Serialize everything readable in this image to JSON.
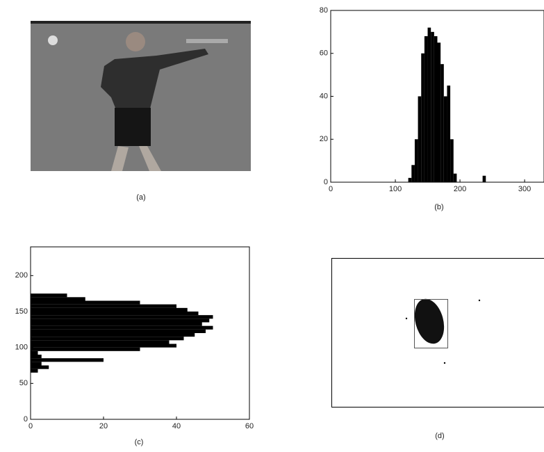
{
  "chart_data": [
    {
      "type": "histogram",
      "orientation": "vertical",
      "caption": "(b)",
      "color": "#000000",
      "bins": [
        120,
        125,
        130,
        135,
        140,
        145,
        150,
        155,
        160,
        165,
        170,
        175,
        180,
        185,
        190,
        195,
        200,
        205,
        210,
        215,
        220,
        225,
        230,
        235,
        240
      ],
      "counts": [
        2,
        8,
        20,
        40,
        60,
        68,
        72,
        70,
        68,
        65,
        55,
        40,
        45,
        20,
        4,
        0,
        0,
        0,
        0,
        0,
        0,
        0,
        0,
        3
      ],
      "xlim": [
        0,
        330
      ],
      "xticks": [
        0,
        100,
        200,
        300
      ],
      "ylim": [
        0,
        80
      ],
      "yticks": [
        0,
        20,
        40,
        60,
        80
      ]
    },
    {
      "type": "histogram",
      "orientation": "horizontal",
      "caption": "(c)",
      "color": "#000000",
      "bins": [
        65,
        70,
        75,
        80,
        85,
        90,
        95,
        100,
        105,
        110,
        115,
        120,
        125,
        130,
        135,
        140,
        145,
        150,
        155,
        160,
        165,
        170,
        175
      ],
      "counts": [
        2,
        5,
        3,
        20,
        3,
        2,
        30,
        40,
        38,
        42,
        45,
        48,
        50,
        47,
        49,
        50,
        46,
        43,
        40,
        30,
        15,
        10
      ],
      "xlim": [
        0,
        60
      ],
      "xticks": [
        0,
        20,
        40,
        60
      ],
      "ylim": [
        0,
        240
      ],
      "yticks": [
        0,
        50,
        100,
        150,
        200
      ]
    }
  ],
  "images": [
    {
      "caption": "(a)"
    },
    {
      "caption": "(d)"
    }
  ]
}
